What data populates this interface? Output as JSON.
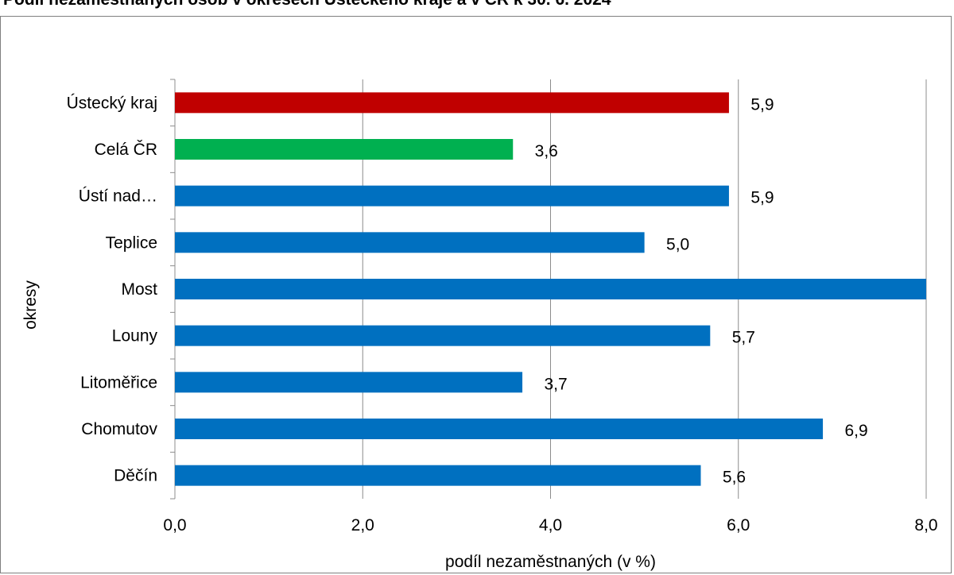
{
  "chart_data": {
    "type": "bar",
    "orientation": "horizontal",
    "title": "Podíl nezaměstnaných osob v okresech Ústeckého kraje a v ČR k 30. 6. 2024",
    "xlabel": "podíl nezaměstnaných (v %)",
    "ylabel": "okresy",
    "xlim": [
      0,
      8
    ],
    "xticks": [
      "0,0",
      "2,0",
      "4,0",
      "6,0",
      "8,0"
    ],
    "grid": true,
    "categories": [
      "Ústecký kraj",
      "Celá ČR",
      "Ústí nad…",
      "Teplice",
      "Most",
      "Louny",
      "Litoměřice",
      "Chomutov",
      "Děčín"
    ],
    "values": [
      5.9,
      3.6,
      5.9,
      5.0,
      8.0,
      5.7,
      3.7,
      6.9,
      5.6
    ],
    "data_labels": [
      "5,9",
      "3,6",
      "5,9",
      "5,0",
      "",
      "5,7",
      "3,7",
      "6,9",
      "5,6"
    ],
    "colors": [
      "#c00000",
      "#00b050",
      "#0070c0",
      "#0070c0",
      "#0070c0",
      "#0070c0",
      "#0070c0",
      "#0070c0",
      "#0070c0"
    ]
  }
}
